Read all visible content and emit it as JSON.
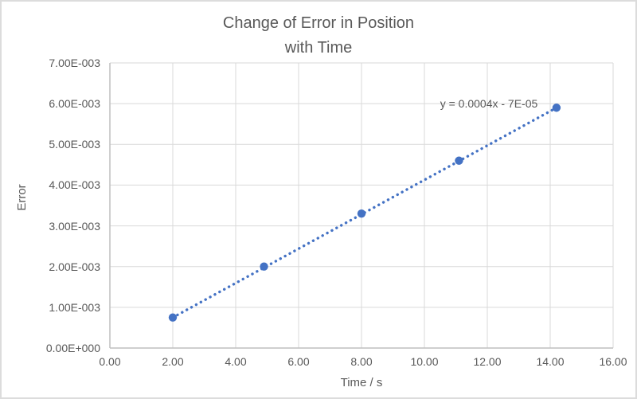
{
  "window": {
    "background": "#ffffff",
    "border_color": "#dcdcdc"
  },
  "chart_data": {
    "type": "scatter",
    "title": "Change of Error in Position\nwith Time",
    "xlabel": "Time / s",
    "ylabel": "Error",
    "x": [
      2.0,
      4.9,
      8.0,
      11.1,
      14.2
    ],
    "y": [
      0.00075,
      0.002,
      0.0033,
      0.0046,
      0.0059
    ],
    "xlim": [
      0,
      16
    ],
    "ylim": [
      0,
      0.007
    ],
    "x_tick_labels": [
      "0.00",
      "2.00",
      "4.00",
      "6.00",
      "8.00",
      "10.00",
      "12.00",
      "14.00",
      "16.00"
    ],
    "y_tick_labels": [
      "0.00E+000",
      "1.00E-003",
      "2.00E-003",
      "3.00E-003",
      "4.00E-003",
      "5.00E-003",
      "6.00E-003",
      "7.00E-003"
    ],
    "grid": true,
    "legend": "none",
    "trendline": {
      "style": "dotted",
      "label": "y = 0.0004x - 7E-05"
    },
    "colors": {
      "marker": "#4472C4",
      "trendline": "#4472C4",
      "text": "#595959",
      "gridline": "#D9D9D9",
      "axis_line": "#BFBFBF"
    }
  }
}
